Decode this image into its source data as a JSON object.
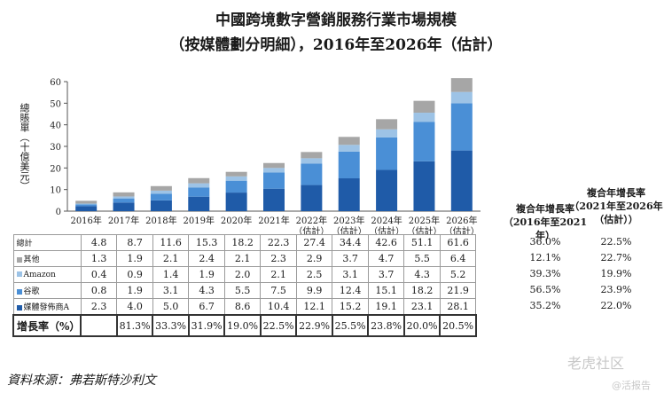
{
  "title_line1": "中國跨境數字營銷服務行業市場規模",
  "title_line2": "（按媒體劃分明細），2016年至2026年（估計）",
  "colors": {
    "others": "#a6a6a6",
    "amazon": "#9dc3e6",
    "google": "#4a8fd6",
    "media": "#1f5ba8"
  },
  "chart_data": {
    "type": "bar",
    "stacked": true,
    "ylabel": "總賬單（十億美元）",
    "ylim": [
      0,
      60
    ],
    "yticks": [
      0,
      10,
      20,
      30,
      40,
      50,
      60
    ],
    "categories": [
      "2016年",
      "2017年",
      "2018年",
      "2019年",
      "2020年",
      "2021年",
      "2022年\n（估計）",
      "2023年\n（估計）",
      "2024年\n（估計）",
      "2025年\n（估計）",
      "2026年\n（估計）"
    ],
    "series": [
      {
        "name": "媒體發佈商A",
        "key": "media",
        "values": [
          2.3,
          4.0,
          5.0,
          6.7,
          8.6,
          10.4,
          12.1,
          15.2,
          19.1,
          23.1,
          28.1
        ]
      },
      {
        "name": "谷歌",
        "key": "google",
        "values": [
          0.8,
          1.9,
          3.1,
          4.3,
          5.5,
          7.5,
          9.9,
          12.4,
          15.1,
          18.2,
          21.9
        ]
      },
      {
        "name": "Amazon",
        "key": "amazon",
        "values": [
          0.4,
          0.9,
          1.4,
          1.9,
          2.0,
          2.1,
          2.5,
          3.1,
          3.7,
          4.3,
          5.2
        ]
      },
      {
        "name": "其他",
        "key": "others",
        "values": [
          1.3,
          1.9,
          2.1,
          2.4,
          2.1,
          2.3,
          2.9,
          3.7,
          4.7,
          5.5,
          6.4
        ]
      }
    ],
    "total_label": "總計",
    "totals": [
      4.8,
      8.7,
      11.6,
      15.3,
      18.2,
      22.3,
      27.4,
      34.4,
      42.6,
      51.1,
      61.6
    ],
    "growth_label": "增長率（%）",
    "growth": [
      "",
      "81.3%",
      "33.3%",
      "31.9%",
      "19.0%",
      "22.5%",
      "22.9%",
      "25.5%",
      "23.8%",
      "20.0%",
      "20.5%"
    ],
    "cagr_header1": "複合年增長率\n（2016年至2021年）",
    "cagr_header2": "複合年增長率\n（2021年至2026年\n（估計））",
    "cagr1": {
      "total": "36.0%",
      "others": "12.1%",
      "amazon": "39.3%",
      "google": "56.5%",
      "media": "35.2%"
    },
    "cagr2": {
      "total": "22.5%",
      "others": "22.7%",
      "amazon": "19.9%",
      "google": "23.9%",
      "media": "22.0%"
    }
  },
  "source": "資料來源：弗若斯特沙利文",
  "watermark1": "老虎社区",
  "watermark2": "@活报告"
}
